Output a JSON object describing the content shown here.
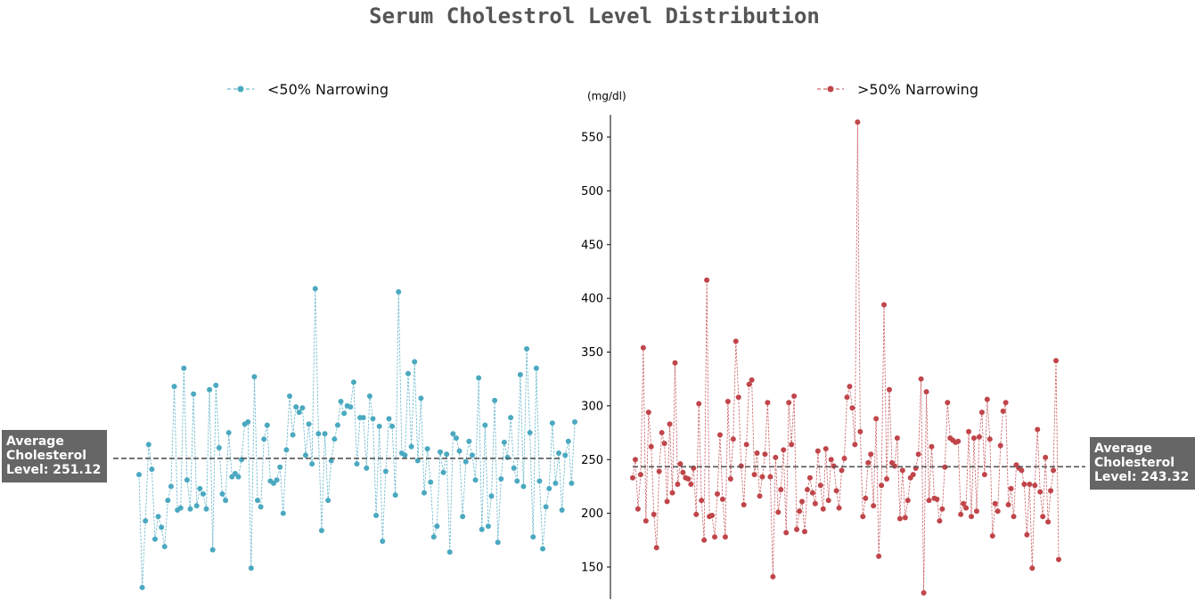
{
  "title": "Serum Cholestrol Level Distribution",
  "chart_data": {
    "type": "line",
    "title": "Serum Cholestrol Level Distribution",
    "y_unit": "(mg/dl)",
    "ylim": [
      120,
      570
    ],
    "yticks": [
      150,
      200,
      250,
      300,
      350,
      400,
      450,
      500,
      550
    ],
    "grid": false,
    "series": [
      {
        "name": "<50% Narrowing",
        "color": "#4aa9c0",
        "average": 251.12,
        "average_label": [
          "Average",
          "Cholesterol",
          "Level: 251.12"
        ],
        "legend_position": "top-center",
        "values": [
          236,
          131,
          193,
          264,
          241,
          176,
          197,
          187,
          169,
          212,
          225,
          318,
          203,
          205,
          335,
          231,
          204,
          311,
          207,
          223,
          218,
          204,
          315,
          166,
          319,
          261,
          218,
          212,
          275,
          234,
          237,
          234,
          250,
          283,
          285,
          149,
          327,
          212,
          206,
          269,
          282,
          230,
          228,
          231,
          243,
          200,
          259,
          309,
          273,
          299,
          294,
          298,
          254,
          283,
          246,
          409,
          274,
          184,
          274,
          212,
          249,
          269,
          282,
          304,
          293,
          300,
          299,
          322,
          246,
          289,
          289,
          242,
          309,
          288,
          198,
          281,
          174,
          239,
          288,
          281,
          217,
          406,
          256,
          254,
          330,
          262,
          341,
          249,
          307,
          219,
          260,
          229,
          178,
          188,
          257,
          238,
          255,
          164,
          274,
          270,
          258,
          197,
          248,
          267,
          254,
          231,
          326,
          185,
          282,
          188,
          216,
          305,
          173,
          232,
          266,
          252,
          289,
          242,
          230,
          329,
          225,
          353,
          275,
          178,
          335,
          230,
          167,
          206,
          223,
          284,
          228,
          256,
          203,
          254,
          267,
          228,
          285
        ]
      },
      {
        "name": ">50% Narrowing",
        "color": "#c0454a",
        "average": 243.32,
        "average_label": [
          "Average",
          "Cholesterol",
          "Level: 243.32"
        ],
        "legend_position": "top-center",
        "values": [
          233,
          250,
          204,
          236,
          354,
          193,
          294,
          262,
          199,
          168,
          239,
          275,
          265,
          211,
          283,
          219,
          340,
          227,
          246,
          238,
          233,
          232,
          227,
          242,
          199,
          302,
          212,
          175,
          417,
          197,
          198,
          178,
          218,
          273,
          213,
          178,
          304,
          232,
          269,
          360,
          308,
          244,
          208,
          264,
          320,
          324,
          236,
          256,
          216,
          234,
          255,
          303,
          234,
          141,
          252,
          201,
          222,
          259,
          182,
          303,
          264,
          309,
          185,
          202,
          211,
          183,
          222,
          233,
          219,
          209,
          258,
          226,
          204,
          260,
          212,
          250,
          244,
          221,
          205,
          240,
          251,
          308,
          318,
          298,
          264,
          564,
          276,
          197,
          214,
          247,
          255,
          207,
          288,
          160,
          226,
          394,
          232,
          315,
          247,
          244,
          270,
          195,
          240,
          196,
          212,
          233,
          236,
          242,
          255,
          325,
          126,
          313,
          212,
          262,
          214,
          213,
          193,
          204,
          243,
          303,
          270,
          268,
          266,
          267,
          199,
          209,
          205,
          276,
          197,
          270,
          202,
          271,
          294,
          236,
          306,
          269,
          179,
          209,
          202,
          263,
          295,
          303,
          208,
          223,
          197,
          245,
          242,
          240,
          227,
          180,
          227,
          149,
          226,
          278,
          220,
          197,
          252,
          192,
          221,
          240,
          342,
          157
        ]
      }
    ]
  }
}
